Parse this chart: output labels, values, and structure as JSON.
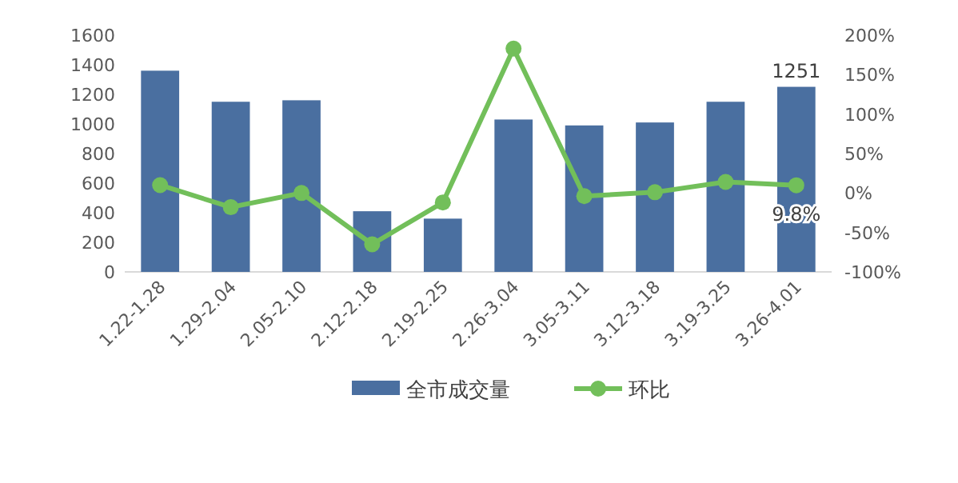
{
  "chart_data": {
    "type": "bar",
    "categories": [
      "1.22-1.28",
      "1.29-2.04",
      "2.05-2.10",
      "2.12-2.18",
      "2.19-2.25",
      "2.26-3.04",
      "3.05-3.11",
      "3.12-3.18",
      "3.19-3.25",
      "3.26-4.01"
    ],
    "series": [
      {
        "name": "全市成交量",
        "color": "#4a6fa0",
        "values": [
          1360,
          1150,
          1160,
          410,
          360,
          1030,
          990,
          1010,
          1150,
          1251
        ],
        "value_labels": [
          null,
          null,
          null,
          null,
          null,
          null,
          null,
          null,
          null,
          "1251"
        ]
      },
      {
        "name": "环比",
        "type": "line",
        "axis": "y2",
        "color": "#72bf5a",
        "marker": "circle",
        "values": [
          10,
          -18,
          0,
          -65,
          -12,
          183,
          -4,
          1,
          14,
          9.8
        ],
        "value_labels": [
          null,
          null,
          null,
          null,
          null,
          null,
          null,
          null,
          null,
          "9.8%"
        ]
      }
    ],
    "ylim": [
      0,
      1600
    ],
    "yticks": [
      0,
      200,
      400,
      600,
      800,
      1000,
      1200,
      1400,
      1600
    ],
    "y2lim": [
      -100,
      200
    ],
    "y2ticks": [
      {
        "value": -100,
        "label": "-100%"
      },
      {
        "value": -50,
        "label": "-50%"
      },
      {
        "value": 0,
        "label": "0%"
      },
      {
        "value": 50,
        "label": "50%"
      },
      {
        "value": 100,
        "label": "100%"
      },
      {
        "value": 150,
        "label": "150%"
      },
      {
        "value": 200,
        "label": "200%"
      }
    ],
    "legend": "bottom",
    "grid": false
  }
}
